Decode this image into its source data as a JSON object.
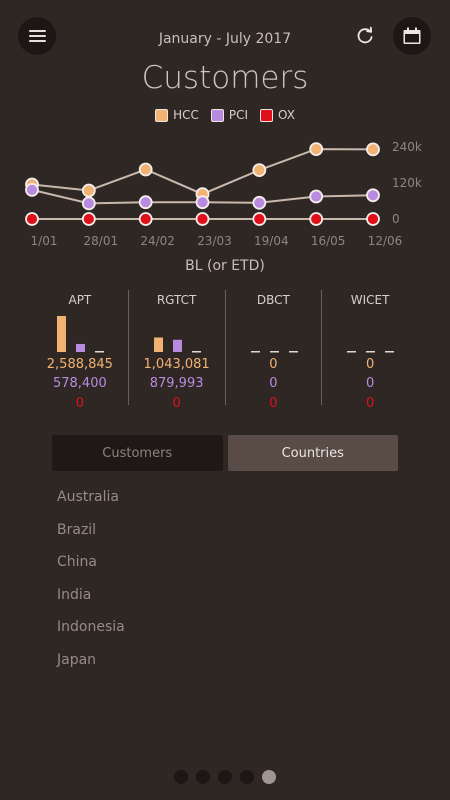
{
  "header": {
    "date_range": "January - July 2017",
    "menu_icon": "hamburger-menu-icon",
    "refresh_icon": "refresh-icon",
    "calendar_icon": "calendar-icon"
  },
  "title": "Customers",
  "legend": [
    {
      "label": "HCC",
      "color": "#f2b274"
    },
    {
      "label": "PCI",
      "color": "#b98be0"
    },
    {
      "label": "OX",
      "color": "#e0101b"
    }
  ],
  "chart_data": {
    "type": "line",
    "x": [
      "1/01",
      "28/01",
      "24/02",
      "23/03",
      "19/04",
      "16/05",
      "12/06"
    ],
    "y_ticks": [
      "240k",
      "120k",
      "0"
    ],
    "ylim": [
      0,
      240000
    ],
    "legend_position": "top-center",
    "grid": false,
    "series": [
      {
        "name": "HCC",
        "color": "#f2b274",
        "values": [
          115000,
          95000,
          165000,
          83000,
          163000,
          233000,
          232000
        ]
      },
      {
        "name": "PCI",
        "color": "#b98be0",
        "values": [
          97000,
          52000,
          56000,
          56000,
          54000,
          75000,
          79000
        ]
      },
      {
        "name": "OX",
        "color": "#e0101b",
        "values": [
          0,
          0,
          0,
          0,
          0,
          0,
          0
        ]
      }
    ]
  },
  "chart_subtitle": "BL (or ETD)",
  "metrics": [
    {
      "name": "APT",
      "values": [
        "2,588,845",
        "578,400",
        "0"
      ],
      "bars": [
        2588845,
        578400,
        0
      ]
    },
    {
      "name": "RGTCT",
      "values": [
        "1,043,081",
        "879,993",
        "0"
      ],
      "bars": [
        1043081,
        879993,
        0
      ]
    },
    {
      "name": "DBCT",
      "values": [
        "0",
        "0",
        "0"
      ],
      "bars": [
        0,
        0,
        0
      ]
    },
    {
      "name": "WICET",
      "values": [
        "0",
        "0",
        "0"
      ],
      "bars": [
        0,
        0,
        0
      ]
    }
  ],
  "tabs": [
    {
      "label": "Customers",
      "active": false
    },
    {
      "label": "Countries",
      "active": true
    }
  ],
  "countries": [
    "Australia",
    "Brazil",
    "China",
    "India",
    "Indonesia",
    "Japan"
  ],
  "pager": {
    "count": 5,
    "active": 5
  }
}
